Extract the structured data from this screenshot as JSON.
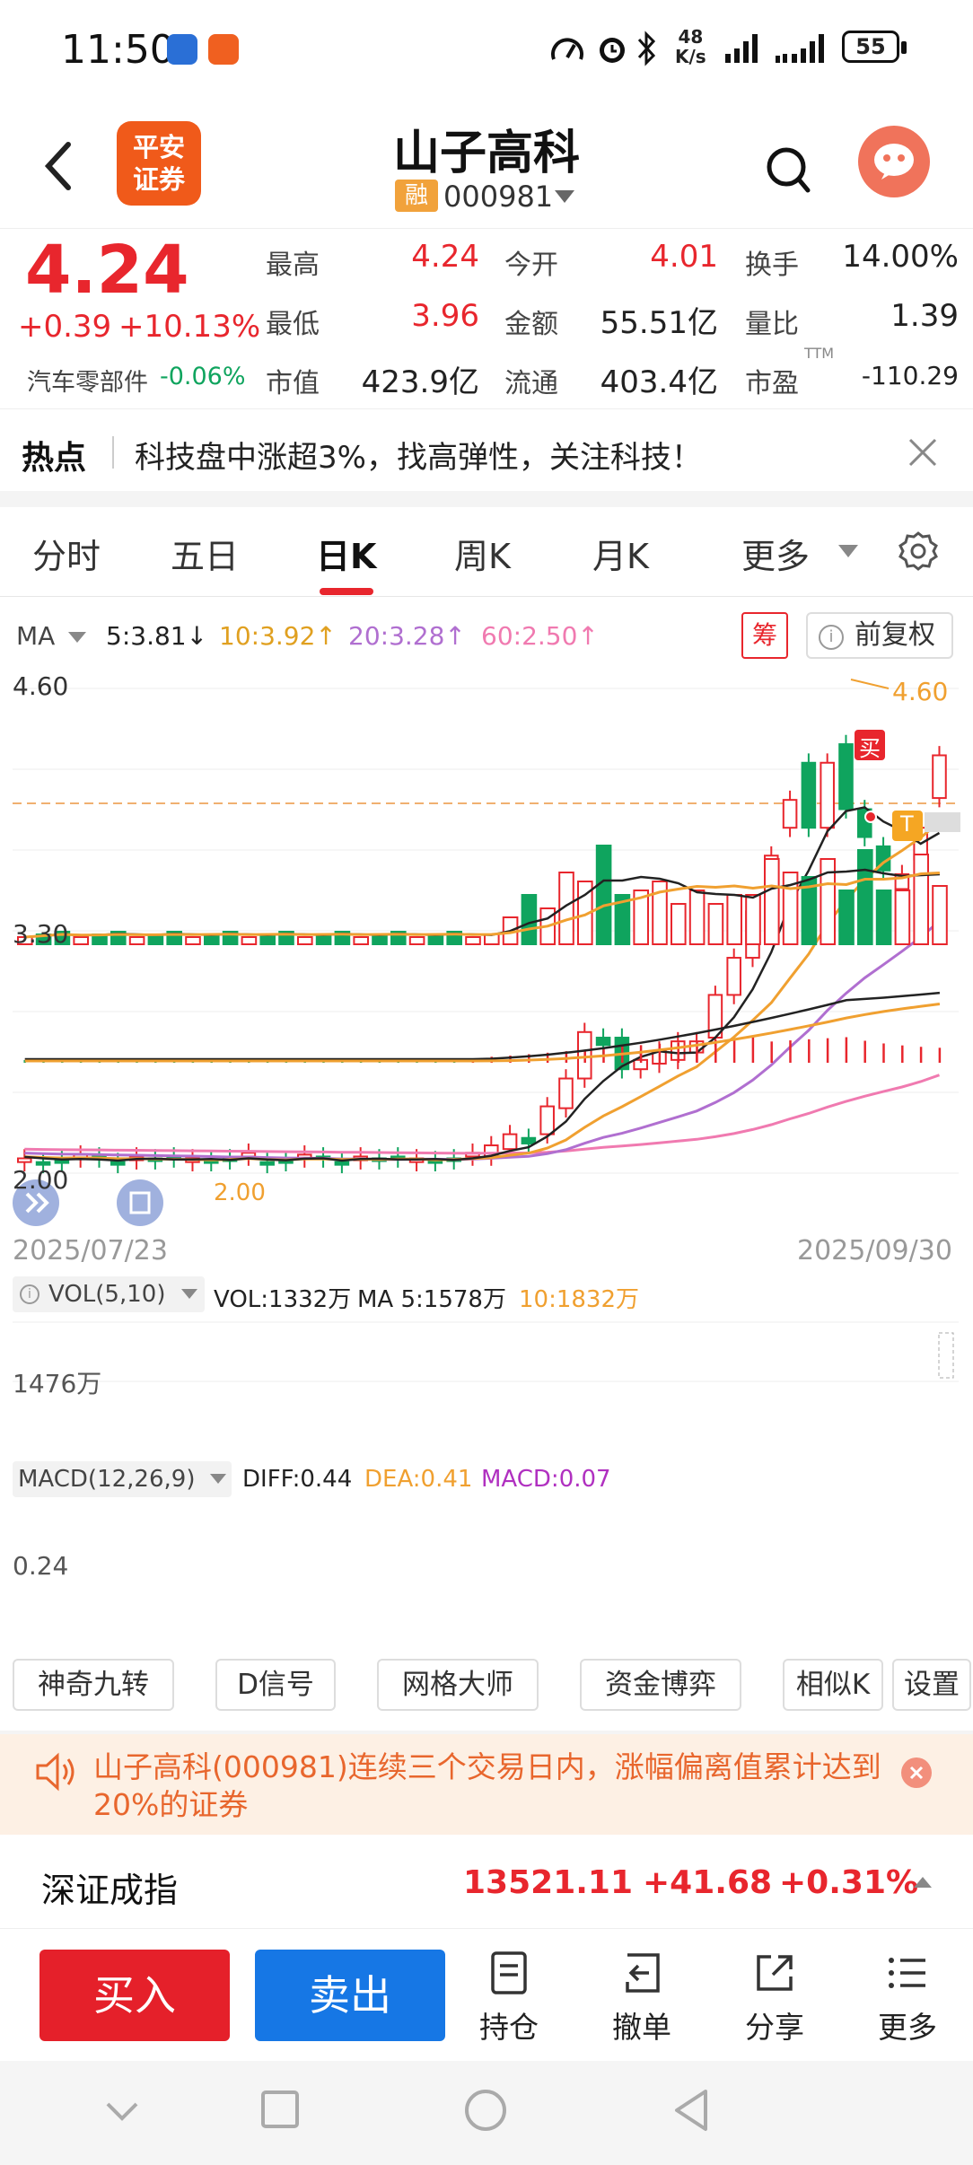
{
  "status_bar": {
    "time": "11:50",
    "net_speed_value": "48",
    "net_speed_unit": "K/s",
    "battery": "55",
    "app_icons": [
      "lizhi-app-icon",
      "message-app-icon"
    ]
  },
  "header": {
    "broker_logo_line1": "平安",
    "broker_logo_line2": "证券",
    "stock_name": "山子高科",
    "rong_badge": "融",
    "stock_code": "000981"
  },
  "quote": {
    "price": "4.24",
    "change": "+0.39",
    "change_pct": "+10.13%",
    "sector_name": "汽车零部件",
    "sector_change": "-0.06%",
    "fields": [
      {
        "label": "最高",
        "value": "4.24",
        "color": "red"
      },
      {
        "label": "今开",
        "value": "4.01",
        "color": "red"
      },
      {
        "label": "换手",
        "value": "14.00%",
        "color": "black"
      },
      {
        "label": "最低",
        "value": "3.96",
        "color": "red"
      },
      {
        "label": "金额",
        "value": "55.51亿",
        "color": "black"
      },
      {
        "label": "量比",
        "value": "1.39",
        "color": "black"
      },
      {
        "label": "市值",
        "value": "423.9亿",
        "color": "black"
      },
      {
        "label": "流通",
        "value": "403.4亿",
        "color": "black"
      },
      {
        "label": "市盈",
        "value": "-110.29",
        "color": "black"
      }
    ],
    "pe_superscript": "TTM"
  },
  "hot": {
    "label": "热点",
    "text": "科技盘中涨超3%，找高弹性，关注科技！"
  },
  "tabs": [
    "分时",
    "五日",
    "日K",
    "周K",
    "月K",
    "更多"
  ],
  "active_tab": "日K",
  "chart": {
    "ma_label": "MA",
    "ma5": "5:3.81↓",
    "ma10": "10:3.92↑",
    "ma20": "20:3.28↑",
    "ma60": "60:2.50↑",
    "chou_badge": "筹",
    "fq_label": "前复权",
    "y_top": "4.60",
    "y_mid": "3.30",
    "y_low": "2.00",
    "high_marker": "4.60",
    "low_marker": "2.00",
    "buy_marker": "买",
    "t_marker": "T",
    "start_date": "2025/07/23",
    "end_date": "2025/09/30",
    "vol_legend": "VOL(5,10)",
    "vol_text": "VOL:1332万",
    "vol_ma5": "MA 5:1578万",
    "vol_ma10": "10:1832万",
    "vol_axis": "1476万",
    "macd_legend": "MACD(12,26,9)",
    "diff": "DIFF:0.44",
    "dea": "DEA:0.41",
    "macd": "MACD:0.07",
    "macd_axis": "0.24",
    "colors": {
      "up": "#e8262d",
      "down": "#0fa45e",
      "ma5": "#222222",
      "ma10": "#f0a030",
      "ma20": "#b06fd0",
      "ma60": "#f07ab0"
    }
  },
  "chart_data": {
    "type": "candlestick",
    "x_range": [
      "2025/07/23",
      "2025/09/30"
    ],
    "ylim": [
      2.0,
      4.6
    ],
    "candles_recent": [
      {
        "o": 2.08,
        "c": 2.14
      },
      {
        "o": 2.12,
        "c": 2.2
      },
      {
        "o": 2.18,
        "c": 2.15
      },
      {
        "o": 2.2,
        "c": 2.35
      },
      {
        "o": 2.34,
        "c": 2.5
      },
      {
        "o": 2.5,
        "c": 2.75
      },
      {
        "o": 2.72,
        "c": 2.68
      },
      {
        "o": 2.72,
        "c": 2.55
      },
      {
        "o": 2.55,
        "c": 2.6
      },
      {
        "o": 2.58,
        "c": 2.65
      },
      {
        "o": 2.6,
        "c": 2.7
      },
      {
        "o": 2.64,
        "c": 2.7
      },
      {
        "o": 2.72,
        "c": 2.95
      },
      {
        "o": 2.95,
        "c": 3.15
      },
      {
        "o": 3.15,
        "c": 3.4
      },
      {
        "o": 3.4,
        "c": 3.7
      },
      {
        "o": 3.85,
        "c": 4.0
      },
      {
        "o": 4.2,
        "c": 3.85
      },
      {
        "o": 3.85,
        "c": 4.2
      },
      {
        "o": 4.3,
        "c": 3.95
      },
      {
        "o": 3.95,
        "c": 3.8
      },
      {
        "o": 3.75,
        "c": 3.62
      },
      {
        "o": 3.52,
        "c": 3.6
      },
      {
        "o": 3.68,
        "c": 3.85
      },
      {
        "o": 4.01,
        "c": 4.24
      }
    ]
  },
  "indicators": [
    "神奇九转",
    "D信号",
    "网格大师",
    "资金博弈",
    "相似K",
    "设置"
  ],
  "notice": {
    "text": "山子高科(000981)连续三个交易日内，涨幅偏离值累计达到20%的证券"
  },
  "index": {
    "name": "深证成指",
    "value": "13521.11",
    "change": "+41.68",
    "change_pct": "+0.31%"
  },
  "actions": {
    "buy": "买入",
    "sell": "卖出",
    "position": "持仓",
    "cancel": "撤单",
    "share": "分享",
    "more": "更多"
  }
}
